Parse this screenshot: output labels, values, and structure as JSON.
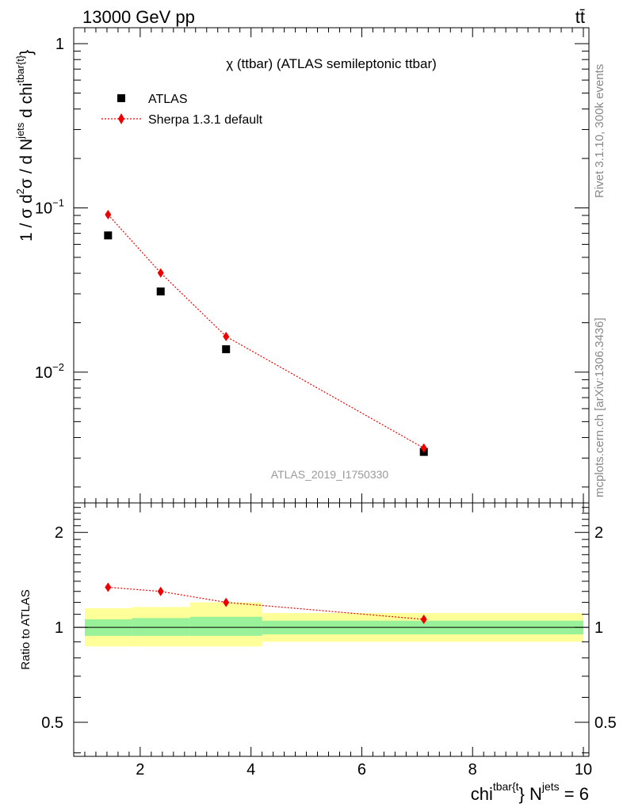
{
  "header": {
    "left": "13000 GeV pp",
    "right": "tt̄"
  },
  "side_labels": {
    "rivet": "Rivet 3.1.10,  300k events",
    "mcplots": "mcplots.cern.ch [arXiv:1306.3436]"
  },
  "chart_data": [
    {
      "type": "scatter",
      "title": "χ (ttbar) (ATLAS semileptonic ttbar)",
      "watermark": "ATLAS_2019_I1750330",
      "ylabel": {
        "prefix": "1 / σ d",
        "sup1": "2",
        "mid": "σ / d N",
        "sup2": "jets",
        "mid2": " d chi",
        "sup3": "tbar{t}",
        "suffix": "}"
      },
      "yscale": "log",
      "ylim": [
        0.0016,
        1.25
      ],
      "xlim": [
        0.8,
        10.1
      ],
      "yticks": [
        {
          "value": 1,
          "label": "1"
        },
        {
          "value": 0.1,
          "base": "10",
          "exp": "−1"
        },
        {
          "value": 0.01,
          "base": "10",
          "exp": "−2"
        }
      ],
      "legend": {
        "position": "top-left",
        "entries": [
          "ATLAS",
          "Sherpa 1.3.1 default"
        ]
      },
      "series": [
        {
          "name": "ATLAS",
          "color": "#000000",
          "marker": "square",
          "x": [
            1.42,
            2.37,
            3.55,
            7.12
          ],
          "y": [
            0.068,
            0.031,
            0.0138,
            0.00327
          ]
        },
        {
          "name": "Sherpa 1.3.1 default",
          "color": "#ee0000",
          "marker": "diamond",
          "line": "dotted",
          "x": [
            1.42,
            2.37,
            3.55,
            7.12
          ],
          "y": [
            0.091,
            0.0402,
            0.0165,
            0.00345
          ]
        }
      ]
    },
    {
      "type": "line",
      "ylabel": "Ratio to ATLAS",
      "xlabel": {
        "prefix": "chi",
        "sup1": "tbar{t",
        "mid": "} N",
        "sup2": "jets",
        "suffix": " = 6"
      },
      "xlim": [
        0.8,
        10.1
      ],
      "ylim": [
        0.39,
        2.48
      ],
      "yscale": "log",
      "xticks": [
        2,
        4,
        6,
        8,
        10
      ],
      "yticks": [
        0.5,
        1,
        2
      ],
      "reference_line": 1,
      "bands": [
        {
          "x0": 1.0,
          "x1": 1.85,
          "inner": [
            0.94,
            1.06
          ],
          "outer": [
            0.87,
            1.15
          ]
        },
        {
          "x0": 1.85,
          "x1": 2.9,
          "inner": [
            0.94,
            1.07
          ],
          "outer": [
            0.87,
            1.16
          ]
        },
        {
          "x0": 2.9,
          "x1": 4.2,
          "inner": [
            0.94,
            1.08
          ],
          "outer": [
            0.87,
            1.2
          ]
        },
        {
          "x0": 4.2,
          "x1": 10.0,
          "inner": [
            0.95,
            1.05
          ],
          "outer": [
            0.9,
            1.11
          ]
        }
      ],
      "band_colors": {
        "inner": "#99f299",
        "outer": "#ffff99"
      },
      "series": [
        {
          "name": "Sherpa 1.3.1 default",
          "color": "#ee0000",
          "x": [
            1.42,
            2.37,
            3.55,
            7.12
          ],
          "y": [
            1.34,
            1.3,
            1.2,
            1.06
          ]
        }
      ]
    }
  ]
}
